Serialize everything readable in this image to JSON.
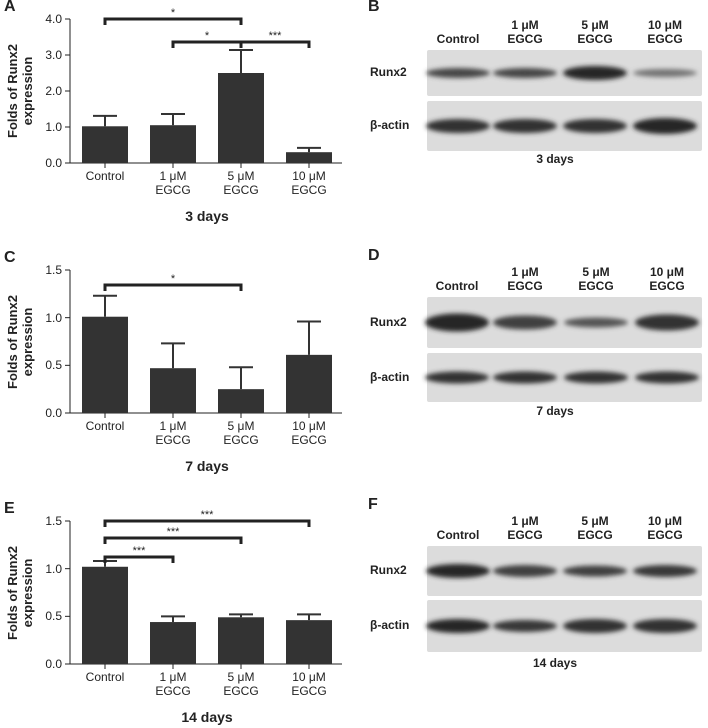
{
  "chart_data": [
    {
      "type": "bar",
      "panel": "A",
      "title": "3 days",
      "y_label": "Folds of Runx2 expression",
      "color": "#333333",
      "categories": [
        "Control",
        "1 μM EGCG",
        "5 μM EGCG",
        "10 μM EGCG"
      ],
      "values": [
        1.02,
        1.05,
        2.5,
        0.3
      ],
      "errors": [
        0.29,
        0.31,
        0.64,
        0.12
      ],
      "ylim": [
        0,
        4
      ],
      "yticks": [
        {
          "value": 0,
          "label": "0.0"
        },
        {
          "value": 1,
          "label": "1.0"
        },
        {
          "value": 2,
          "label": "2.0"
        },
        {
          "value": 3,
          "label": "3.0"
        },
        {
          "value": 4,
          "label": "4.0"
        }
      ],
      "annotations": [
        "*",
        "*",
        "***"
      ]
    },
    {
      "type": "bar",
      "panel": "C",
      "title": "7 days",
      "y_label": "Folds of Runx2 expression",
      "color": "#333333",
      "categories": [
        "Control",
        "1 μM EGCG",
        "5 μM EGCG",
        "10 μM EGCG"
      ],
      "values": [
        1.01,
        0.47,
        0.25,
        0.61
      ],
      "errors": [
        0.22,
        0.26,
        0.23,
        0.35
      ],
      "ylim": [
        0,
        1.5
      ],
      "yticks": [
        {
          "value": 0,
          "label": "0.0"
        },
        0.5,
        {
          "value": 1,
          "label": "1.0"
        },
        1.5
      ],
      "annotations": [
        "*"
      ]
    },
    {
      "type": "bar",
      "panel": "E",
      "title": "14 days",
      "y_label": "Folds of Runx2 expression",
      "color": "#333333",
      "categories": [
        "Control",
        "1 μM EGCG",
        "5 μM EGCG",
        "10 μM EGCG"
      ],
      "values": [
        1.02,
        0.44,
        0.49,
        0.46
      ],
      "errors": [
        0.06,
        0.06,
        0.03,
        0.06
      ],
      "ylim": [
        0,
        1.5
      ],
      "yticks": [
        {
          "value": 0,
          "label": "0.0"
        },
        0.5,
        {
          "value": 1,
          "label": "1.0"
        },
        1.5
      ],
      "annotations": [
        "***",
        "***",
        "***"
      ]
    }
  ],
  "blots": [
    {
      "panel": "B",
      "lanes": [
        "Control",
        "1 μM EGCG",
        "5 μM EGCG",
        "10 μM EGCG"
      ],
      "rows": [
        "Runx2",
        "β-actin"
      ],
      "caption": "3 days"
    },
    {
      "panel": "D",
      "lanes": [
        "Control",
        "1 μM EGCG",
        "5 μM EGCG",
        "10 μM EGCG"
      ],
      "rows": [
        "Runx2",
        "β-actin"
      ],
      "caption": "7 days"
    },
    {
      "panel": "F",
      "lanes": [
        "Control",
        "1 μM EGCG",
        "5 μM EGCG",
        "10 μM EGCG"
      ],
      "rows": [
        "Runx2",
        "β-actin"
      ],
      "caption": "14 days"
    }
  ]
}
